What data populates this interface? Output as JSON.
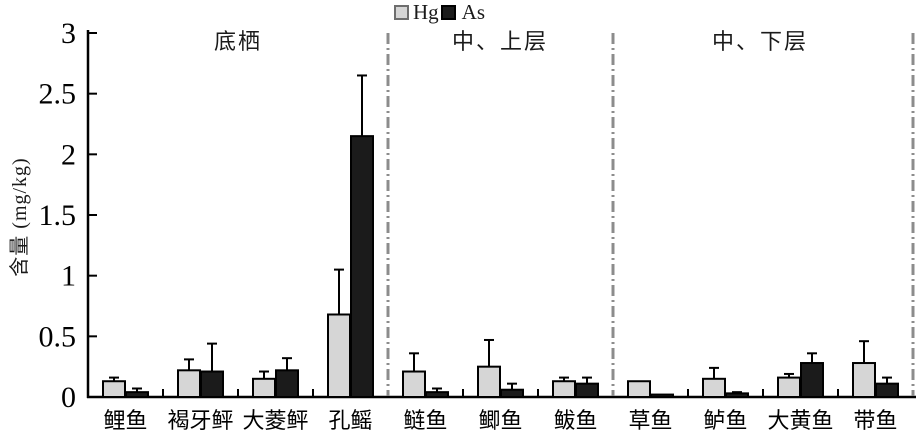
{
  "chart_data": {
    "type": "bar",
    "title": "",
    "ylabel": "含量 (mg/kg)",
    "ylim": [
      0,
      3
    ],
    "yticks": [
      0,
      0.5,
      1,
      1.5,
      2,
      2.5,
      3
    ],
    "ytick_labels": [
      "0",
      "0.5",
      "1",
      "1.5",
      "2",
      "2.5",
      "3"
    ],
    "grid": false,
    "legend_position": "top-center",
    "error_bars": "upper-only",
    "groups": [
      {
        "label": "底栖",
        "categories": [
          "鲤鱼",
          "褐牙鲆",
          "大菱鲆",
          "孔鳐"
        ]
      },
      {
        "label": "中、上层",
        "categories": [
          "鲢鱼",
          "鲫鱼",
          "鲅鱼"
        ]
      },
      {
        "label": "中、下层",
        "categories": [
          "草鱼",
          "鲈鱼",
          "大黄鱼",
          "带鱼"
        ]
      }
    ],
    "categories": [
      "鲤鱼",
      "褐牙鲆",
      "大菱鲆",
      "孔鳐",
      "鲢鱼",
      "鲫鱼",
      "鲅鱼",
      "草鱼",
      "鲈鱼",
      "大黄鱼",
      "带鱼"
    ],
    "series": [
      {
        "name": "Hg",
        "color": "#d6d6d6",
        "values": [
          0.13,
          0.22,
          0.15,
          0.68,
          0.21,
          0.25,
          0.13,
          0.13,
          0.15,
          0.16,
          0.28
        ],
        "errors": [
          0.03,
          0.09,
          0.06,
          0.37,
          0.15,
          0.22,
          0.03,
          0.0,
          0.09,
          0.03,
          0.18
        ]
      },
      {
        "name": "As",
        "color": "#1b1b1b",
        "values": [
          0.04,
          0.21,
          0.22,
          2.15,
          0.04,
          0.06,
          0.11,
          0.02,
          0.03,
          0.28,
          0.11
        ],
        "errors": [
          0.03,
          0.23,
          0.1,
          0.5,
          0.03,
          0.05,
          0.05,
          0.0,
          0.01,
          0.08,
          0.05
        ]
      }
    ],
    "colors": {
      "axis": "#000000",
      "separator": "#8c8c8c",
      "background": "#ffffff"
    }
  }
}
